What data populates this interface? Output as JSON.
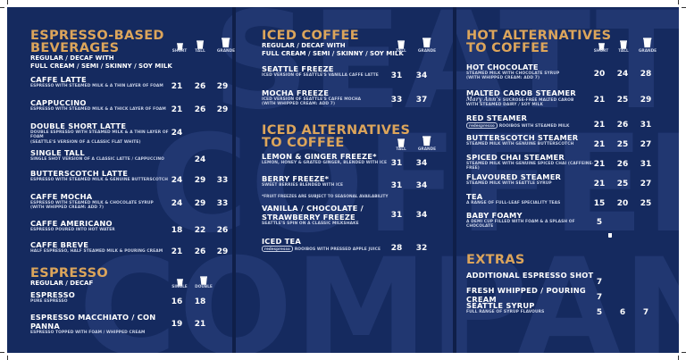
{
  "watermark": {
    "lines": [
      "SEATTLE",
      "COFFEE",
      "COMPANY"
    ]
  },
  "col1": {
    "title": [
      "ESPRESSO-BASED",
      "BEVERAGES"
    ],
    "sub": [
      "REGULAR / DECAF WITH",
      "FULL CREAM / SEMI / SKINNY / SOY MILK"
    ],
    "sizes": [
      "SHORT",
      "TALL",
      "GRANDE"
    ],
    "items": [
      {
        "name": "CAFFE LATTE",
        "desc": [
          "ESPRESSO WITH STEAMED MILK & A THIN LAYER OF FOAM"
        ],
        "prices": [
          "21",
          "26",
          "29"
        ]
      },
      {
        "name": "CAPPUCCINO",
        "desc": [
          "ESPRESSO WITH STEAMED MILK & A THICK LAYER OF FOAM"
        ],
        "prices": [
          "21",
          "26",
          "29"
        ]
      },
      {
        "name": "DOUBLE SHORT LATTE",
        "desc": [
          "DOUBLE ESPRESSO WITH STEAMED MILK & A THIN LAYER OF FOAM",
          "(SEATTLE'S VERSION OF A CLASSIC FLAT WHITE)"
        ],
        "prices": [
          "24",
          "",
          ""
        ]
      },
      {
        "name": "SINGLE TALL",
        "desc": [
          "SINGLE SHOT VERSION OF A CLASSIC LATTE / CAPPUCCINO"
        ],
        "prices": [
          "",
          "24",
          ""
        ]
      },
      {
        "name": "BUTTERSCOTCH LATTE",
        "desc": [
          "ESPRESSO WITH STEAMED MILK & GENUINE BUTTERSCOTCH"
        ],
        "prices": [
          "24",
          "29",
          "33"
        ]
      },
      {
        "name": "CAFFE MOCHA",
        "desc": [
          "ESPRESSO WITH STEAMED MILK & CHOCOLATE SYRUP",
          "(WITH WHIPPED CREAM: ADD 7)"
        ],
        "prices": [
          "24",
          "29",
          "33"
        ]
      },
      {
        "name": "CAFFE AMERICANO",
        "desc": [
          "ESPRESSO POURED INTO HOT WATER"
        ],
        "prices": [
          "18",
          "22",
          "26"
        ]
      },
      {
        "name": "CAFFE BREVE",
        "desc": [
          "HALF ESPRESSO, HALF STEAMED MILK & POURING CREAM"
        ],
        "prices": [
          "21",
          "26",
          "29"
        ]
      }
    ]
  },
  "espresso": {
    "title": "ESPRESSO",
    "sub": "REGULAR / DECAF",
    "sizes": [
      "SINGLE",
      "DOUBLE"
    ],
    "items": [
      {
        "name": "ESPRESSO",
        "desc": [
          "PURE ESPRESSO"
        ],
        "prices": [
          "16",
          "18"
        ]
      },
      {
        "name": "ESPRESSO MACCHIATO / CON PANNA",
        "desc": [
          "ESPRESSO TOPPED WITH FOAM / WHIPPED CREAM"
        ],
        "prices": [
          "19",
          "21"
        ]
      }
    ]
  },
  "iced": {
    "title": "ICED COFFEE",
    "sub": [
      "REGULAR / DECAF WITH",
      "FULL CREAM / SEMI / SKINNY / SOY MILK"
    ],
    "sizes": [
      "TALL",
      "GRANDE"
    ],
    "items": [
      {
        "name": "SEATTLE FREEZE",
        "desc": [
          "ICED VERSION OF SEATTLE'S VANILLA CAFFE LATTE"
        ],
        "prices": [
          "31",
          "34"
        ]
      },
      {
        "name": "MOCHA FREEZE",
        "desc": [
          "ICED VERSION OF SEATTLE'S CAFFE MOCHA",
          "(WITH WHIPPED CREAM: ADD 7)"
        ],
        "prices": [
          "33",
          "37"
        ]
      }
    ]
  },
  "icedalt": {
    "title": [
      "ICED ALTERNATIVES",
      "TO COFFEE"
    ],
    "sizes": [
      "TALL",
      "GRANDE"
    ],
    "items": [
      {
        "name": "LEMON & GINGER FREEZE*",
        "desc": [
          "LEMON, HONEY & GRATED GINGER, BLENDED WITH ICE"
        ],
        "prices": [
          "31",
          "34"
        ]
      },
      {
        "name": "BERRY FREEZE*",
        "desc": [
          "SWEET BERRIES BLENDED WITH ICE"
        ],
        "prices": [
          "31",
          "34"
        ]
      },
      {
        "name": "VANILLA / CHOCOLATE / STRAWBERRY FREEZE",
        "desc": [
          "SEATTLE'S SPIN ON A CLASSIC MILKSHAKE"
        ],
        "prices": [
          "31",
          "34"
        ]
      },
      {
        "name": "ICED TEA",
        "badge": "redespresso",
        "desc": [
          "ROOIBOS WITH PRESSED APPLE JUICE"
        ],
        "prices": [
          "28",
          "32"
        ]
      }
    ],
    "note": "*FRUIT FREEZES ARE SUBJECT TO SEASONAL AVAILABILITY"
  },
  "hotalt": {
    "title": [
      "HOT ALTERNATIVES",
      "TO COFFEE"
    ],
    "sizes": [
      "SHORT",
      "TALL",
      "GRANDE"
    ],
    "items": [
      {
        "name": "HOT CHOCOLATE",
        "desc": [
          "STEAMED MILK WITH CHOCOLATE SYRUP",
          "(WITH WHIPPED CREAM: ADD 7)"
        ],
        "prices": [
          "20",
          "24",
          "28"
        ]
      },
      {
        "name": "MALTED CAROB STEAMER",
        "script": "Mary Ann's",
        "desc": [
          "SUCROSE-FREE MALTED CAROB",
          "WITH STEAMED DAIRY / SOY MILK"
        ],
        "prices": [
          "21",
          "25",
          "29"
        ]
      },
      {
        "name": "RED STEAMER",
        "badge": "redespresso",
        "desc": [
          "ROOIBOS WITH STEAMED MILK"
        ],
        "prices": [
          "21",
          "26",
          "31"
        ]
      },
      {
        "name": "BUTTERSCOTCH STEAMER",
        "desc": [
          "STEAMED MILK WITH GENUINE BUTTERSCOTCH"
        ],
        "prices": [
          "21",
          "25",
          "27"
        ]
      },
      {
        "name": "SPICED CHAI STEAMER",
        "desc": [
          "STEAMED MILK WITH GENUINE SPICED CHAI (CAFFEINE-FREE)"
        ],
        "prices": [
          "21",
          "26",
          "31"
        ]
      },
      {
        "name": "FLAVOURED STEAMER",
        "desc": [
          "STEAMED MILK WITH SEATTLE SYRUP"
        ],
        "prices": [
          "21",
          "25",
          "27"
        ]
      },
      {
        "name": "TEA",
        "desc": [
          "A RANGE OF FULL-LEAF SPECIALITY TEAS"
        ],
        "prices": [
          "15",
          "20",
          "25"
        ]
      },
      {
        "name": "BABY FOAMY",
        "desc": [
          "A DEMI CUP FILLED WITH FOAM & A SPLASH OF CHOCOLATE"
        ],
        "prices": [
          "5",
          "",
          ""
        ]
      }
    ]
  },
  "extras": {
    "title": "EXTRAS",
    "items": [
      {
        "name": "ADDITIONAL ESPRESSO SHOT",
        "prices": [
          "7",
          "",
          ""
        ]
      },
      {
        "name": "FRESH WHIPPED / POURING CREAM",
        "prices": [
          "7",
          "",
          ""
        ]
      },
      {
        "name": "SEATTLE SYRUP",
        "desc": [
          "FULL RANGE OF SYRUP FLAVOURS"
        ],
        "prices": [
          "5",
          "6",
          "7"
        ]
      }
    ]
  },
  "colors": {
    "background": "#152a5f",
    "heading": "#dca55b",
    "text": "#ffffff",
    "watermark": "#2b4280"
  },
  "icons": [
    "cup-short-icon",
    "cup-tall-icon",
    "cup-grande-icon",
    "redespresso-logo",
    "mary-anns-logo"
  ]
}
